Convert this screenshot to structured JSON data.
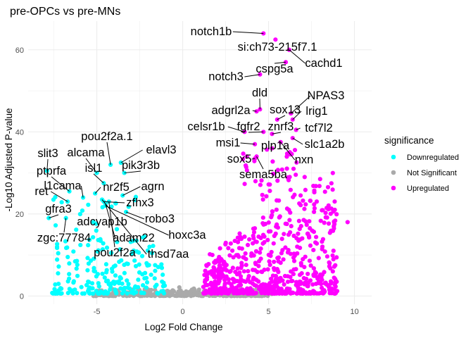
{
  "chart_data": {
    "type": "scatter",
    "title": "pre-OPCs vs pre-MNs",
    "xlabel": "Log2 Fold Change",
    "ylabel": "-Log10 Adjusted P-value",
    "xlim": [
      -9,
      11
    ],
    "ylim": [
      -2,
      67
    ],
    "xticks": [
      -5,
      0,
      5,
      10
    ],
    "yticks": [
      0,
      20,
      40,
      60
    ],
    "grid": true,
    "legend": {
      "title": "significance",
      "position": "right",
      "entries": [
        {
          "label": "Downregulated",
          "color": "#00FFFF"
        },
        {
          "label": "Not Significant",
          "color": "#AAAAAA"
        },
        {
          "label": "Upregulated",
          "color": "#FF00FF"
        }
      ]
    },
    "labeled_genes": [
      {
        "gene": "notch1b",
        "x": 4.7,
        "y": 64.0,
        "group": "Upregulated"
      },
      {
        "gene": "si:ch73-215f7.1",
        "x": 5.4,
        "y": 62.5,
        "group": "Upregulated"
      },
      {
        "gene": "cachd1",
        "x": 6.2,
        "y": 60.0,
        "group": "Upregulated"
      },
      {
        "gene": "cspg5a",
        "x": 6.0,
        "y": 57.0,
        "group": "Upregulated"
      },
      {
        "gene": "notch3",
        "x": 4.5,
        "y": 54.0,
        "group": "Upregulated"
      },
      {
        "gene": "NPAS3",
        "x": 6.3,
        "y": 44.5,
        "group": "Upregulated"
      },
      {
        "gene": "dld",
        "x": 4.5,
        "y": 45.5,
        "group": "Upregulated"
      },
      {
        "gene": "sox13",
        "x": 5.5,
        "y": 43.0,
        "group": "Upregulated"
      },
      {
        "gene": "lrig1",
        "x": 6.4,
        "y": 43.0,
        "group": "Upregulated"
      },
      {
        "gene": "adgrl2a",
        "x": 4.3,
        "y": 45.0,
        "group": "Upregulated"
      },
      {
        "gene": "celsr1b",
        "x": 3.6,
        "y": 40.0,
        "group": "Upregulated"
      },
      {
        "gene": "fgfr2",
        "x": 4.7,
        "y": 40.0,
        "group": "Upregulated"
      },
      {
        "gene": "znrf3",
        "x": 5.2,
        "y": 39.5,
        "group": "Upregulated"
      },
      {
        "gene": "tcf7l2",
        "x": 6.6,
        "y": 40.5,
        "group": "Upregulated"
      },
      {
        "gene": "msi1",
        "x": 4.2,
        "y": 37.0,
        "group": "Upregulated"
      },
      {
        "gene": "plp1a",
        "x": 5.2,
        "y": 36.0,
        "group": "Upregulated"
      },
      {
        "gene": "slc1a2b",
        "x": 6.4,
        "y": 38.5,
        "group": "Upregulated"
      },
      {
        "gene": "sox5",
        "x": 4.2,
        "y": 33.5,
        "group": "Upregulated"
      },
      {
        "gene": "nxn",
        "x": 5.7,
        "y": 37.5,
        "group": "Upregulated"
      },
      {
        "gene": "sema5ba",
        "x": 4.3,
        "y": 34.0,
        "group": "Upregulated"
      },
      {
        "gene": "pou2f2a.1",
        "x": -4.2,
        "y": 32.0,
        "group": "Downregulated"
      },
      {
        "gene": "elavl3",
        "x": -3.6,
        "y": 32.5,
        "group": "Downregulated"
      },
      {
        "gene": "slit3",
        "x": -7.9,
        "y": 30.5,
        "group": "Downregulated"
      },
      {
        "gene": "alcama",
        "x": -5.0,
        "y": 30.0,
        "group": "Downregulated"
      },
      {
        "gene": "pik3r3b",
        "x": -3.4,
        "y": 30.0,
        "group": "Downregulated"
      },
      {
        "gene": "isl1",
        "x": -4.6,
        "y": 27.5,
        "group": "Downregulated"
      },
      {
        "gene": "ptprfa",
        "x": -6.6,
        "y": 25.5,
        "group": "Downregulated"
      },
      {
        "gene": "nr2f5",
        "x": -5.1,
        "y": 25.0,
        "group": "Downregulated"
      },
      {
        "gene": "agrn",
        "x": -3.5,
        "y": 24.5,
        "group": "Downregulated"
      },
      {
        "gene": "l1cama",
        "x": -5.8,
        "y": 24.0,
        "group": "Downregulated"
      },
      {
        "gene": "ret",
        "x": -6.7,
        "y": 23.0,
        "group": "Downregulated"
      },
      {
        "gene": "zfhx3",
        "x": -4.6,
        "y": 23.0,
        "group": "Downregulated"
      },
      {
        "gene": "gfra3",
        "x": -7.8,
        "y": 19.0,
        "group": "Downregulated"
      },
      {
        "gene": "robo3",
        "x": -3.3,
        "y": 20.5,
        "group": "Downregulated"
      },
      {
        "gene": "adcyap1b",
        "x": -5.2,
        "y": 18.0,
        "group": "Downregulated"
      },
      {
        "gene": "zgc:77784",
        "x": -6.8,
        "y": 19.0,
        "group": "Downregulated"
      },
      {
        "gene": "hoxc3a",
        "x": -4.5,
        "y": 22.0,
        "group": "Downregulated"
      },
      {
        "gene": "adam22",
        "x": -4.5,
        "y": 22.5,
        "group": "Downregulated"
      },
      {
        "gene": "pou2f2a",
        "x": -4.3,
        "y": 23.0,
        "group": "Downregulated"
      },
      {
        "gene": "thsd7aa",
        "x": -4.7,
        "y": 23.5,
        "group": "Downregulated"
      }
    ]
  }
}
